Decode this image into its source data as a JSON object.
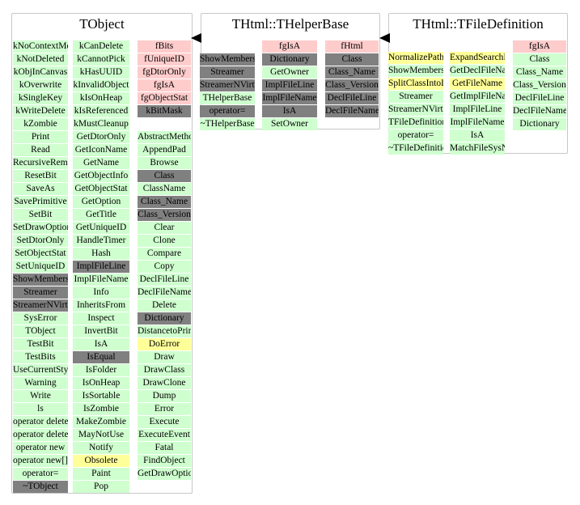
{
  "classes": [
    {
      "title": "TObject",
      "columns": [
        [
          "kNoContextMenu",
          "kNotDeleted",
          "kObjInCanvas",
          "kOverwrite",
          "kSingleKey",
          "kWriteDelete",
          "kZombie",
          "Print",
          "Read",
          "RecursiveRemove",
          "ResetBit",
          "SaveAs",
          "SavePrimitive",
          "SetBit",
          "SetDrawOption",
          "SetDtorOnly",
          "SetObjectStat",
          "SetUniqueID",
          "ShowMembers",
          "Streamer",
          "StreamerNVirtual",
          "SysError",
          "TObject",
          "TestBit",
          "TestBits",
          "UseCurrentStyle",
          "Warning",
          "Write",
          "ls",
          "operator delete",
          "operator delete[]",
          "operator new",
          "operator new[]",
          "operator=",
          "~TObject"
        ],
        [
          "kCanDelete",
          "kCannotPick",
          "kHasUUID",
          "kInvalidObject",
          "kIsOnHeap",
          "kIsReferenced",
          "kMustCleanup",
          "GetDtorOnly",
          "GetIconName",
          "GetName",
          "GetObjectInfo",
          "GetObjectStat",
          "GetOption",
          "GetTitle",
          "GetUniqueID",
          "HandleTimer",
          "Hash",
          "ImplFileLine",
          "ImplFileName",
          "Info",
          "InheritsFrom",
          "Inspect",
          "InvertBit",
          "IsA",
          "IsEqual",
          "IsFolder",
          "IsOnHeap",
          "IsSortable",
          "IsZombie",
          "MakeZombie",
          "MayNotUse",
          "Notify",
          "Obsolete",
          "Paint",
          "Pop"
        ],
        [
          "fBits",
          "fUniqueID",
          "fgDtorOnly",
          "fgIsA",
          "fgObjectStat",
          "kBitMask",
          "",
          "AbstractMethod",
          "AppendPad",
          "Browse",
          "Class",
          "ClassName",
          "Class_Name",
          "Class_Version",
          "Clear",
          "Clone",
          "Compare",
          "Copy",
          "DeclFileLine",
          "DeclFileName",
          "Delete",
          "Dictionary",
          "DistancetoPrimitive",
          "DoError",
          "Draw",
          "DrawClass",
          "DrawClone",
          "Dump",
          "Error",
          "Execute",
          "ExecuteEvent",
          "Fatal",
          "FindObject",
          "GetDrawOption"
        ]
      ]
    },
    {
      "title": "THtml::THelperBase",
      "columns": [
        [
          "ShowMembers",
          "Streamer",
          "StreamerNVirtual",
          "THelperBase",
          "operator=",
          "~THelperBase"
        ],
        [
          "fgIsA",
          "Dictionary",
          "GetOwner",
          "ImplFileLine",
          "ImplFileName",
          "IsA",
          "SetOwner"
        ],
        [
          "fHtml",
          "Class",
          "Class_Name",
          "Class_Version",
          "DeclFileLine",
          "DeclFileName"
        ]
      ]
    },
    {
      "title": "THtml::TFileDefinition",
      "columns": [
        [
          "NormalizePath",
          "ShowMembers",
          "SplitClassIntoDirFile",
          "Streamer",
          "StreamerNVirtual",
          "TFileDefinition",
          "operator=",
          "~TFileDefinition"
        ],
        [
          "ExpandSearchPath",
          "GetDeclFileName",
          "GetFileName",
          "GetImplFileName",
          "ImplFileLine",
          "ImplFileName",
          "IsA",
          "MatchFileSysName"
        ],
        [
          "fgIsA",
          "Class",
          "Class_Name",
          "Class_Version",
          "DeclFileLine",
          "DeclFileName",
          "Dictionary"
        ]
      ]
    }
  ],
  "colors": {
    "public": "#cfffcf",
    "data_member": "#ffcccc",
    "protected": "#ffff99",
    "inherited_or_private": "#808080",
    "box_border": "#c8c8c8",
    "arrow": "#000000"
  }
}
